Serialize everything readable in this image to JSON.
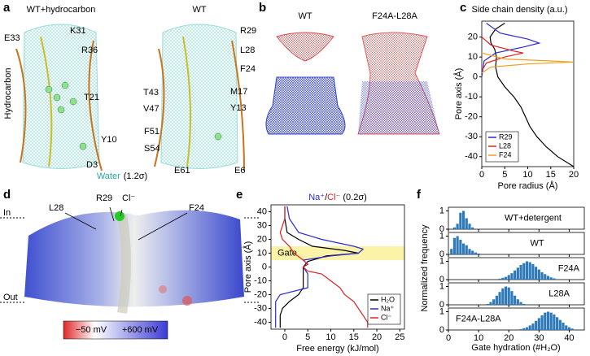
{
  "panel_labels": [
    "a",
    "b",
    "c",
    "d",
    "e",
    "f"
  ],
  "panel_a": {
    "titles": [
      "WT+hydrocarbon",
      "WT"
    ],
    "side_label": "Hydrocarbon",
    "water_label": [
      "Water",
      "(1.2σ)"
    ],
    "residues": [
      "E33",
      "K31",
      "R36",
      "T21",
      "Y10",
      "D3",
      "R29",
      "L28",
      "F24",
      "M17",
      "Y13",
      "T43",
      "V47",
      "F51",
      "S54",
      "E61",
      "E6"
    ]
  },
  "panel_b": {
    "titles": [
      "WT",
      "F24A-L28A"
    ]
  },
  "panel_d": {
    "side_labels": [
      "In",
      "Out"
    ],
    "residues": [
      "L28",
      "R29",
      "Cl⁻",
      "F24"
    ],
    "colorbar_labels": [
      "−50 mV",
      "+600 mV"
    ]
  },
  "panel_f": {
    "ylabel": "Normalized frequency",
    "xlabel": "Gate hydration (#H₂O)"
  },
  "chart_data": [
    {
      "type": "line",
      "title": "Side chain density (a.u.)",
      "xlabel": "Pore radius (Å)",
      "ylabel": "Pore axis (Å)",
      "xlim": [
        0,
        20
      ],
      "xticks": [
        0,
        5,
        10,
        15,
        20
      ],
      "ylim": [
        -45,
        28
      ],
      "yticks": [
        -40,
        -30,
        -20,
        -10,
        0,
        10,
        20
      ],
      "legend": "lower left",
      "series": [
        {
          "color": "#000000",
          "x": [
            5,
            3,
            1.8,
            2,
            2.8,
            3.2,
            3,
            3.5,
            5,
            7,
            8.5,
            9.5,
            10.5,
            12,
            14,
            16.5,
            20
          ],
          "y": [
            27,
            24,
            20,
            17,
            14,
            10,
            5,
            0,
            -5,
            -10,
            -15,
            -20,
            -25,
            -30,
            -35,
            -40,
            -45
          ]
        },
        {
          "name": "R29",
          "color": "#2b2bd0",
          "x": [
            1,
            4,
            10,
            12.5,
            9,
            3,
            0.5,
            0
          ],
          "y": [
            27,
            22,
            19,
            17,
            15,
            12,
            8,
            0
          ]
        },
        {
          "name": "L28",
          "color": "#e02020",
          "x": [
            0,
            2,
            7,
            9,
            5,
            1,
            0
          ],
          "y": [
            20,
            16,
            13,
            12,
            10,
            7,
            3
          ]
        },
        {
          "name": "F24",
          "color": "#f0a020",
          "x": [
            0,
            5,
            15,
            20,
            10,
            2,
            0
          ],
          "y": [
            12,
            9,
            8,
            7.5,
            6.5,
            5,
            2
          ]
        }
      ]
    },
    {
      "type": "line",
      "title_parts": [
        "Na⁺",
        "/",
        "Cl⁻",
        " (0.2σ)"
      ],
      "title_colors": [
        "#2b2bd0",
        "#000000",
        "#e02020",
        "#000000"
      ],
      "xlabel": "Free energy (kJ/mol)",
      "ylabel": "Pore axis (Å)",
      "xlim": [
        -3,
        26
      ],
      "xticks": [
        0,
        5,
        10,
        15,
        20,
        25
      ],
      "ylim": [
        -45,
        45
      ],
      "yticks": [
        -40,
        -30,
        -20,
        -10,
        0,
        10,
        20,
        30,
        40
      ],
      "legend": "lower right",
      "band": {
        "label": "Gate",
        "range": [
          5,
          15
        ],
        "color": "#fbf3a8"
      },
      "series": [
        {
          "name": "H₂O",
          "color": "#000000",
          "x": [
            0,
            0,
            0.5,
            3,
            6,
            13,
            16,
            9,
            7,
            5,
            4,
            4,
            4,
            4,
            3,
            1,
            -0.5,
            -1,
            -1,
            -1
          ],
          "y": [
            44,
            35,
            25,
            20,
            15,
            12,
            10,
            8,
            6,
            4,
            0,
            -5,
            -10,
            -15,
            -20,
            -25,
            -30,
            -35,
            -40,
            -44
          ]
        },
        {
          "name": "Na⁺",
          "color": "#2b2bd0",
          "x": [
            0.5,
            1,
            3,
            8,
            15,
            17,
            16,
            10,
            4,
            5,
            4,
            5,
            5,
            5,
            -1,
            -2,
            -2,
            -2,
            -2,
            -2
          ],
          "y": [
            44,
            35,
            25,
            20,
            15,
            13,
            10,
            8,
            5,
            2,
            0,
            -5,
            -10,
            -15,
            -20,
            -25,
            -30,
            -35,
            -40,
            -44
          ]
        },
        {
          "name": "Cl⁻",
          "color": "#e02020",
          "x": [
            0,
            0,
            -1,
            -0.5,
            1,
            2,
            4,
            5,
            4,
            5,
            8,
            10,
            12,
            13,
            15,
            16,
            17,
            18,
            18
          ],
          "y": [
            44,
            35,
            25,
            20,
            15,
            10,
            5,
            2,
            0,
            -3,
            -5,
            -10,
            -15,
            -20,
            -25,
            -30,
            -35,
            -40,
            -44
          ]
        }
      ]
    },
    {
      "type": "bar",
      "label": "WT+detergent",
      "color": "#2e7ab8",
      "xlim": [
        0,
        45
      ],
      "xticks": [
        0,
        10,
        20,
        30,
        40
      ],
      "ylim": [
        0,
        1.2
      ],
      "yticks": [
        0,
        1
      ],
      "x": [
        2,
        3,
        4,
        5,
        6,
        7,
        8
      ],
      "values": [
        0.1,
        0.3,
        0.9,
        1.0,
        0.6,
        0.3,
        0.1
      ]
    },
    {
      "type": "bar",
      "label": "WT",
      "color": "#2e7ab8",
      "xlim": [
        0,
        45
      ],
      "xticks": [
        0,
        10,
        20,
        30,
        40
      ],
      "ylim": [
        0,
        1.2
      ],
      "yticks": [
        0,
        1
      ],
      "x": [
        1,
        2,
        3,
        4,
        5,
        6,
        7,
        8,
        9,
        10
      ],
      "values": [
        0.3,
        0.9,
        1.0,
        0.8,
        0.6,
        0.5,
        0.3,
        0.2,
        0.1,
        0.05
      ]
    },
    {
      "type": "bar",
      "label": "F24A",
      "color": "#2e7ab8",
      "xlim": [
        0,
        45
      ],
      "xticks": [
        0,
        10,
        20,
        30,
        40
      ],
      "ylim": [
        0,
        1.2
      ],
      "yticks": [
        0,
        1
      ],
      "x": [
        17,
        18,
        19,
        20,
        21,
        22,
        23,
        24,
        25,
        26,
        27,
        28,
        29,
        30,
        31,
        32,
        33,
        34,
        35,
        36
      ],
      "values": [
        0.05,
        0.1,
        0.15,
        0.25,
        0.35,
        0.5,
        0.65,
        0.8,
        0.9,
        1.0,
        0.95,
        0.85,
        0.7,
        0.55,
        0.4,
        0.3,
        0.2,
        0.12,
        0.07,
        0.03
      ]
    },
    {
      "type": "bar",
      "label": "L28A",
      "color": "#2e7ab8",
      "xlim": [
        0,
        45
      ],
      "xticks": [
        0,
        10,
        20,
        30,
        40
      ],
      "ylim": [
        0,
        1.2
      ],
      "yticks": [
        0,
        1
      ],
      "x": [
        13,
        14,
        15,
        16,
        17,
        18,
        19,
        20,
        21,
        22,
        23,
        24,
        25
      ],
      "values": [
        0.05,
        0.15,
        0.3,
        0.5,
        0.7,
        0.9,
        1.0,
        0.95,
        0.75,
        0.5,
        0.3,
        0.15,
        0.05
      ]
    },
    {
      "type": "bar",
      "label": "F24A-L28A",
      "color": "#2e7ab8",
      "xlim": [
        0,
        45
      ],
      "xticks": [
        0,
        10,
        20,
        30,
        40
      ],
      "ylim": [
        0,
        1.2
      ],
      "yticks": [
        0,
        1
      ],
      "x": [
        24,
        25,
        26,
        27,
        28,
        29,
        30,
        31,
        32,
        33,
        34,
        35,
        36,
        37,
        38,
        39,
        40,
        41,
        42
      ],
      "values": [
        0.05,
        0.1,
        0.15,
        0.25,
        0.35,
        0.5,
        0.65,
        0.8,
        0.95,
        1.0,
        0.95,
        0.85,
        0.7,
        0.55,
        0.4,
        0.25,
        0.15,
        0.08,
        0.03
      ]
    }
  ]
}
